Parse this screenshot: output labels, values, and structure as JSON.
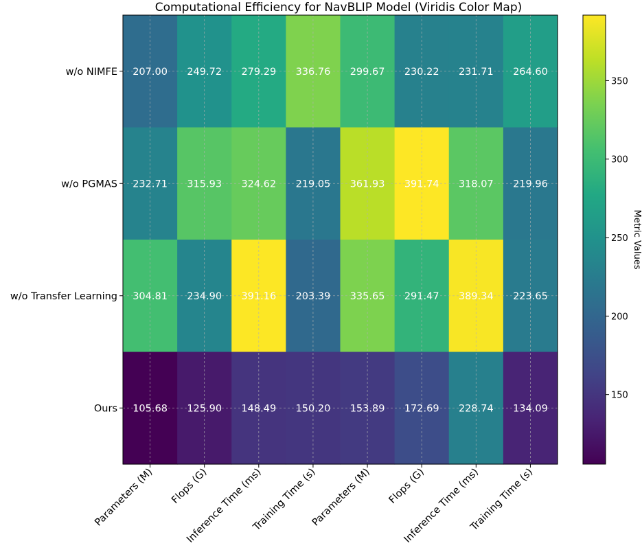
{
  "chart_data": {
    "type": "heatmap",
    "title": "Computational Efficiency for NavBLIP Model (Viridis Color Map)",
    "columns": [
      "Parameters (M)",
      "Flops (G)",
      "Inference Time (ms)",
      "Training Time (s)",
      "Parameters (M)",
      "Flops (G)",
      "Inference Time (ms)",
      "Training Time (s)"
    ],
    "rows": [
      "w/o NIMFE",
      "w/o PGMAS",
      "w/o Transfer Learning",
      "Ours"
    ],
    "values": [
      [
        207.0,
        249.72,
        279.29,
        336.76,
        299.67,
        230.22,
        231.71,
        264.6
      ],
      [
        232.71,
        315.93,
        324.62,
        219.05,
        361.93,
        391.74,
        318.07,
        219.96
      ],
      [
        304.81,
        234.9,
        391.16,
        203.39,
        335.65,
        291.47,
        389.34,
        223.65
      ],
      [
        105.68,
        125.9,
        148.49,
        150.2,
        153.89,
        172.69,
        228.74,
        134.09
      ]
    ],
    "value_format": "2 decimals",
    "colormap": "viridis",
    "vmin": 105.68,
    "vmax": 391.74,
    "colorbar": {
      "label": "Metric Values",
      "ticks": [
        150,
        200,
        250,
        300,
        350
      ]
    },
    "grid": true
  }
}
